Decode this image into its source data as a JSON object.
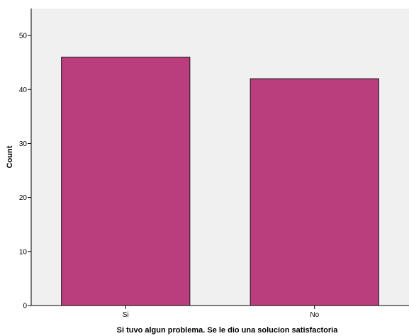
{
  "chart_data": {
    "type": "bar",
    "title": "",
    "xlabel": "Si tuvo algun problema. Se le dio una solucion satisfactoria",
    "ylabel": "Count",
    "categories": [
      "Si",
      "No"
    ],
    "values": [
      46,
      42
    ],
    "ylim": [
      0,
      55
    ],
    "yticks": [
      0,
      10,
      20,
      30,
      40,
      50
    ],
    "grid": false,
    "colors": {
      "bar_fill": "#BA3E7D",
      "bar_stroke": "#1a1a1a",
      "plot_background": "#F0F0F0",
      "page_background": "#FFFFFF",
      "axis": "#000000"
    }
  }
}
